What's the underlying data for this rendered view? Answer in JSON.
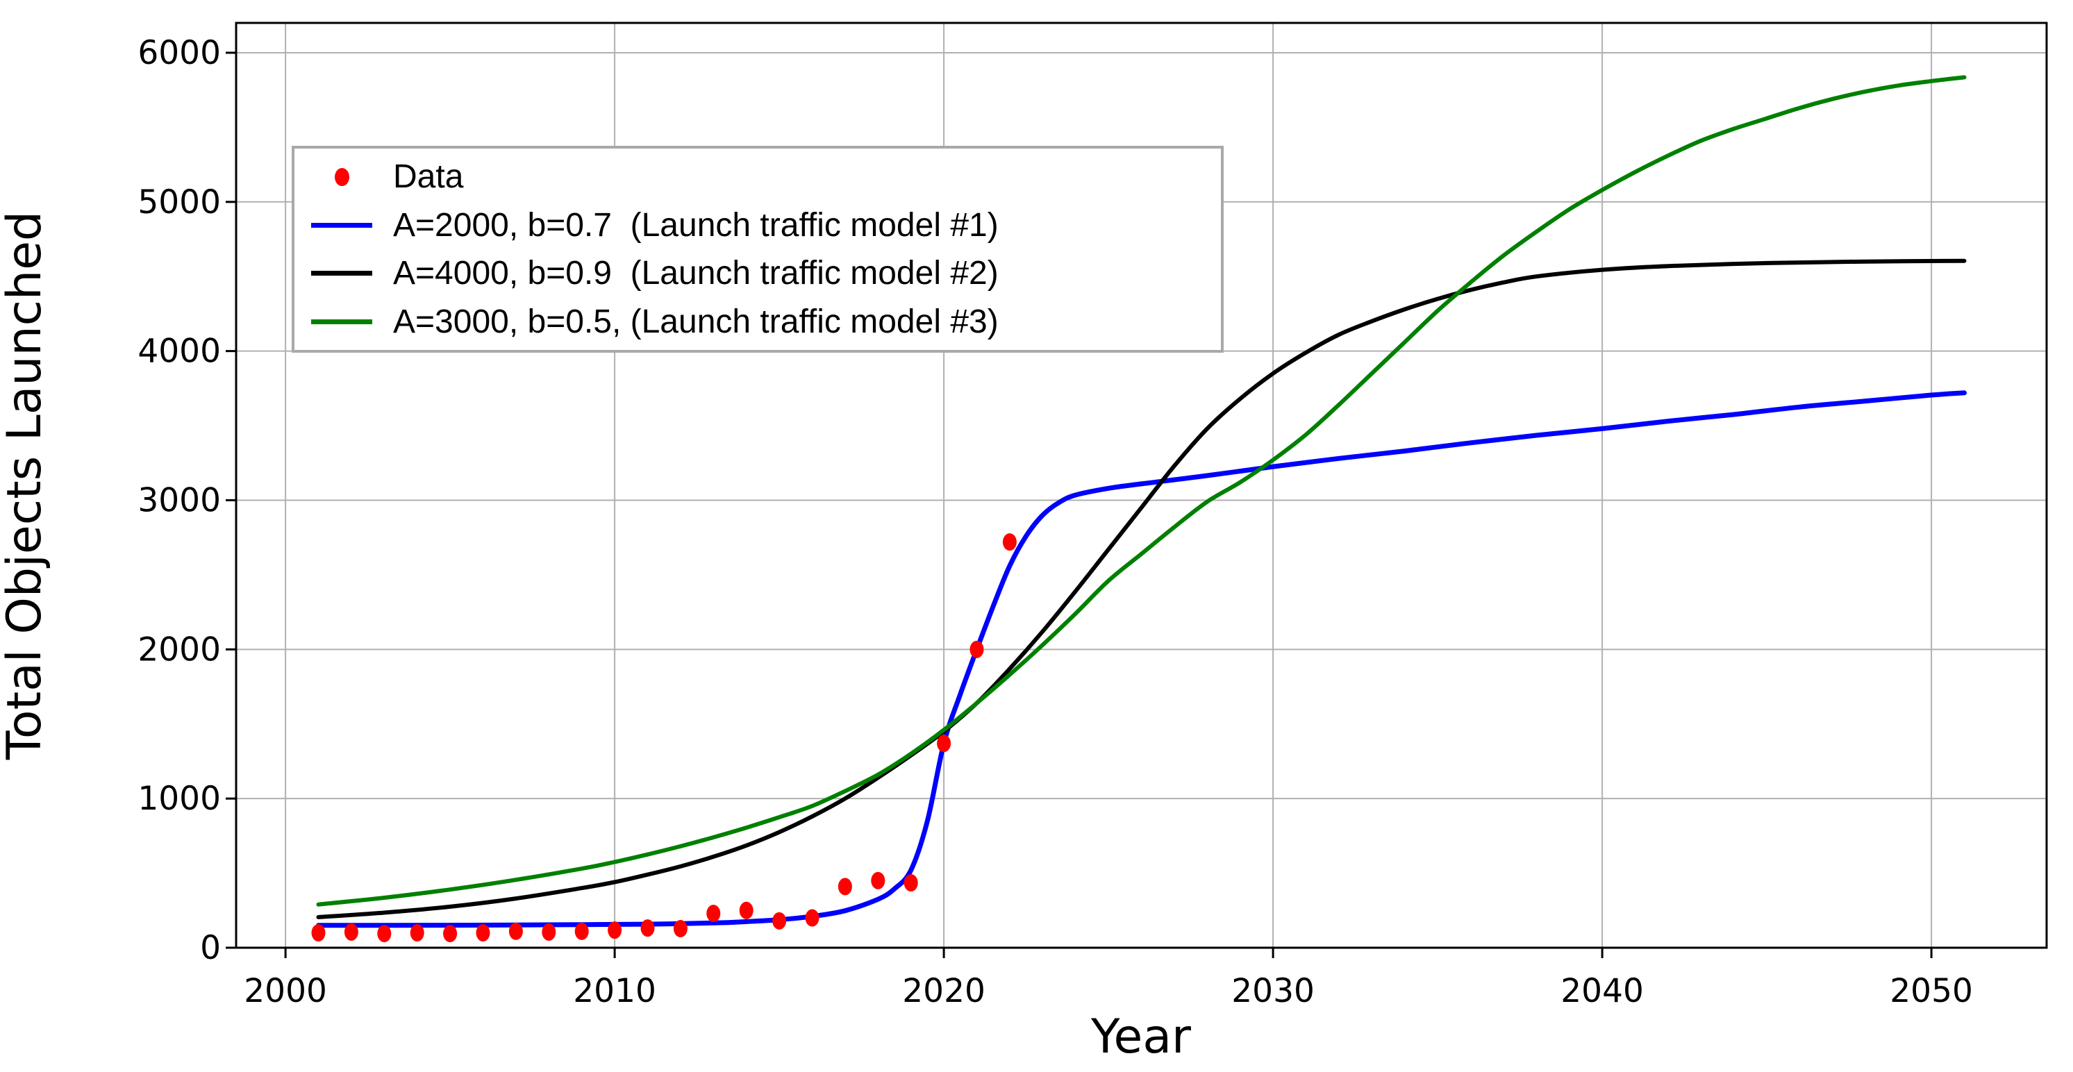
{
  "colors": {
    "scatter": "#ff0000",
    "model1": "#0000ff",
    "model2": "#000000",
    "model3": "#008000",
    "grid": "#b0b0b0",
    "frame": "#000000",
    "legend_border": "#a9a9a9",
    "background": "#ffffff"
  },
  "legend": {
    "position": "upper left",
    "items": [
      {
        "label": "Data",
        "marker": "dot",
        "color": "#ff0000"
      },
      {
        "label": "A=2000, b=0.7  (Launch traffic model #1)",
        "marker": "line",
        "color": "#0000ff"
      },
      {
        "label": "A=4000, b=0.9  (Launch traffic model #2)",
        "marker": "line",
        "color": "#000000"
      },
      {
        "label": "A=3000, b=0.5, (Launch traffic model #3)",
        "marker": "line",
        "color": "#008000"
      }
    ]
  },
  "chart_data": {
    "type": "line",
    "title": "",
    "xlabel": "Year",
    "ylabel": "Total Objects Launched",
    "xlim": [
      1998.5,
      2053.5
    ],
    "ylim": [
      0,
      6200
    ],
    "xticks": [
      2000,
      2010,
      2020,
      2030,
      2040,
      2050
    ],
    "yticks": [
      0,
      1000,
      2000,
      3000,
      4000,
      5000,
      6000
    ],
    "grid": true,
    "legend_position": "upper left",
    "scatter": {
      "name": "Data",
      "color": "#ff0000",
      "marker": "dot",
      "x": [
        2001,
        2002,
        2003,
        2004,
        2005,
        2006,
        2007,
        2008,
        2009,
        2010,
        2011,
        2012,
        2013,
        2014,
        2015,
        2016,
        2017,
        2018,
        2019,
        2020,
        2021,
        2022
      ],
      "y": [
        100,
        105,
        95,
        100,
        95,
        100,
        110,
        105,
        110,
        118,
        132,
        128,
        230,
        250,
        180,
        200,
        410,
        450,
        435,
        1370,
        2000,
        2720
      ]
    },
    "series": [
      {
        "name": "A=2000, b=0.7  (Launch traffic model #1)",
        "color": "#0000ff",
        "width": 7,
        "x": [
          2001,
          2003,
          2005,
          2007,
          2009,
          2011,
          2013,
          2014,
          2015,
          2016,
          2017,
          2018,
          2018.5,
          2019,
          2019.5,
          2020,
          2020.5,
          2021,
          2021.5,
          2022,
          2022.5,
          2023,
          2023.5,
          2024,
          2025,
          2026,
          2028,
          2030,
          2032,
          2034,
          2036,
          2038,
          2040,
          2042,
          2044,
          2046,
          2048,
          2050,
          2051
        ],
        "y": [
          150,
          150,
          151,
          152,
          155,
          158,
          166,
          175,
          188,
          210,
          248,
          325,
          395,
          520,
          850,
          1370,
          1700,
          2000,
          2290,
          2560,
          2760,
          2900,
          2985,
          3035,
          3080,
          3110,
          3165,
          3225,
          3280,
          3330,
          3385,
          3435,
          3480,
          3530,
          3575,
          3625,
          3665,
          3705,
          3720
        ]
      },
      {
        "name": "A=4000, b=0.9  (Launch traffic model #2)",
        "color": "#000000",
        "width": 6,
        "x": [
          2001,
          2003,
          2005,
          2007,
          2009,
          2010,
          2011,
          2012,
          2013,
          2014,
          2015,
          2016,
          2017,
          2018,
          2019,
          2020,
          2021,
          2022,
          2023,
          2024,
          2025,
          2026,
          2027,
          2028,
          2029,
          2030,
          2031,
          2032,
          2033,
          2034,
          2035,
          2036,
          2037,
          2038,
          2040,
          2042,
          2045,
          2048,
          2051
        ],
        "y": [
          205,
          235,
          275,
          330,
          400,
          440,
          490,
          545,
          610,
          685,
          775,
          880,
          1000,
          1140,
          1290,
          1450,
          1640,
          1870,
          2120,
          2390,
          2670,
          2950,
          3230,
          3480,
          3680,
          3850,
          3990,
          4110,
          4200,
          4280,
          4350,
          4410,
          4460,
          4500,
          4545,
          4570,
          4590,
          4600,
          4605
        ]
      },
      {
        "name": "A=3000, b=0.5, (Launch traffic model #3)",
        "color": "#008000",
        "width": 6,
        "x": [
          2001,
          2003,
          2005,
          2007,
          2009,
          2010,
          2011,
          2012,
          2013,
          2014,
          2015,
          2016,
          2017,
          2018,
          2019,
          2020,
          2021,
          2022,
          2023,
          2024,
          2025,
          2026,
          2027,
          2028,
          2029,
          2030,
          2031,
          2032,
          2033,
          2034,
          2035,
          2036,
          2037,
          2038,
          2039,
          2040,
          2041,
          2042,
          2043,
          2044,
          2045,
          2046,
          2047,
          2048,
          2049,
          2050,
          2051
        ],
        "y": [
          290,
          335,
          390,
          455,
          530,
          575,
          625,
          680,
          740,
          805,
          875,
          950,
          1050,
          1160,
          1300,
          1460,
          1640,
          1830,
          2030,
          2240,
          2460,
          2640,
          2820,
          2990,
          3120,
          3270,
          3440,
          3640,
          3850,
          4060,
          4270,
          4460,
          4640,
          4800,
          4950,
          5080,
          5200,
          5310,
          5410,
          5490,
          5560,
          5630,
          5690,
          5740,
          5780,
          5810,
          5835
        ]
      }
    ]
  }
}
